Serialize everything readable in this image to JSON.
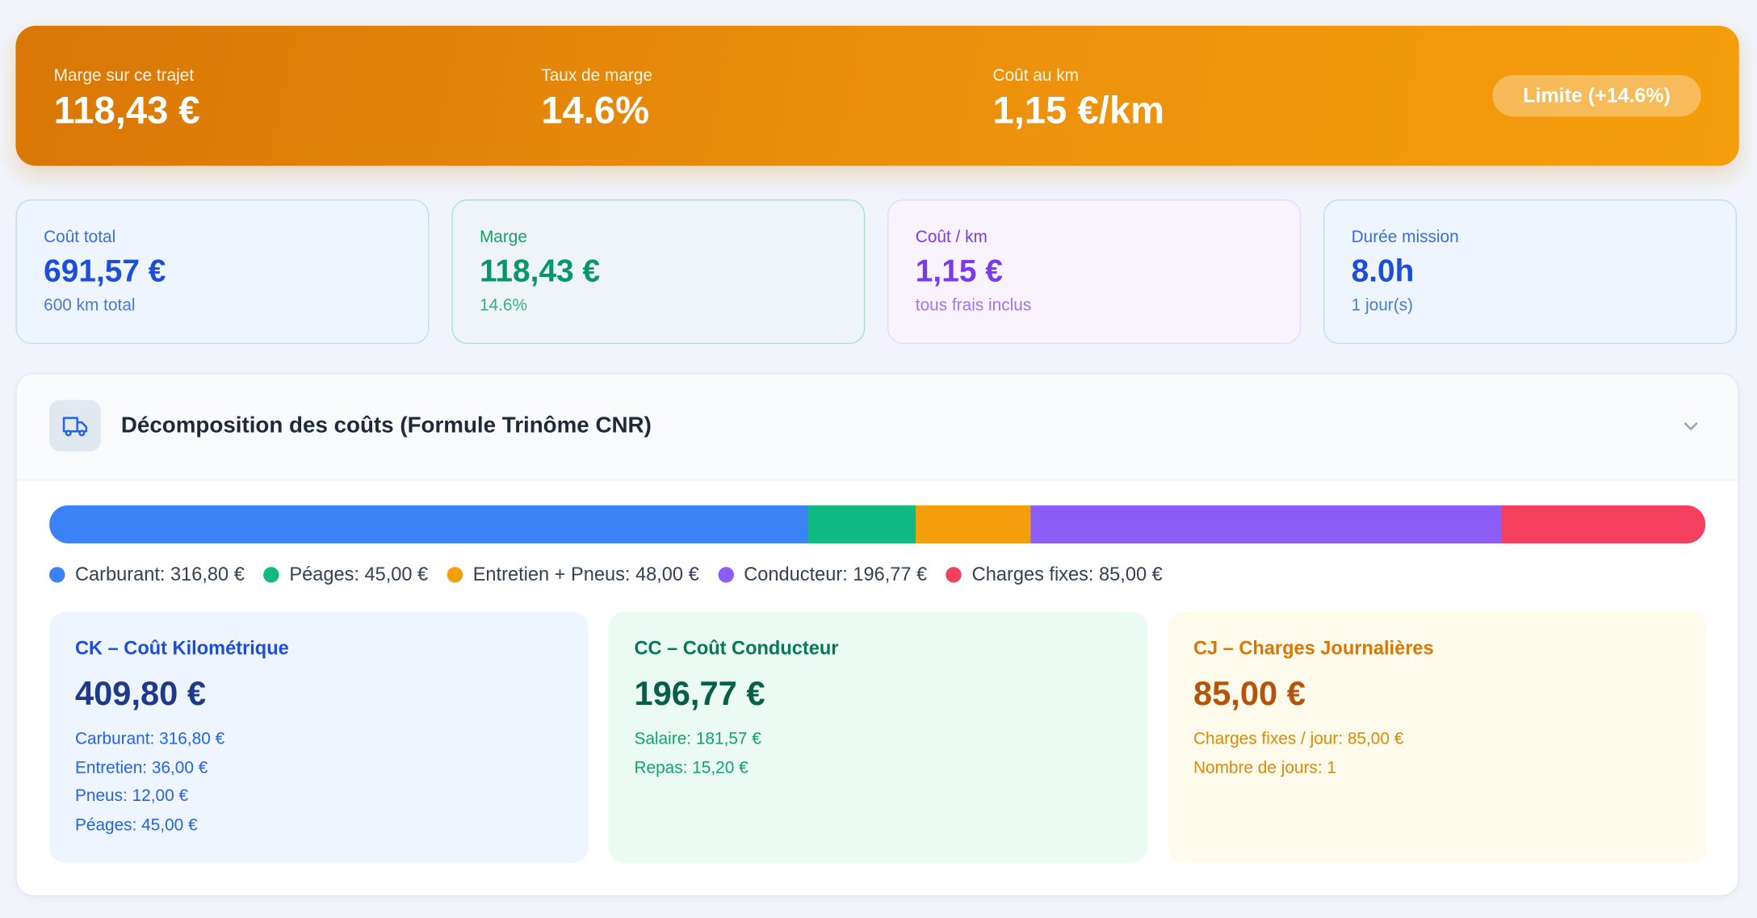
{
  "banner": {
    "items": [
      {
        "label": "Marge sur ce trajet",
        "value": "118,43 €"
      },
      {
        "label": "Taux de marge",
        "value": "14.6%"
      },
      {
        "label": "Coût au km",
        "value": "1,15 €/km"
      }
    ],
    "badge": "Limite (+14.6%)"
  },
  "stats": [
    {
      "label": "Coût total",
      "value": "691,57 €",
      "sub": "600 km total"
    },
    {
      "label": "Marge",
      "value": "118,43 €",
      "sub": "14.6%"
    },
    {
      "label": "Coût / km",
      "value": "1,15 €",
      "sub": "tous frais inclus"
    },
    {
      "label": "Durée mission",
      "value": "8.0h",
      "sub": "1 jour(s)"
    }
  ],
  "breakdown": {
    "title": "Décomposition des coûts (Formule Trinôme CNR)",
    "segments": [
      {
        "label": "Carburant: 316,80 €",
        "value": 316.8,
        "color": "#3b82f6"
      },
      {
        "label": "Péages: 45,00 €",
        "value": 45,
        "color": "#10b981"
      },
      {
        "label": "Entretien + Pneus: 48,00 €",
        "value": 48,
        "color": "#f59e0b"
      },
      {
        "label": "Conducteur: 196,77 €",
        "value": 196.77,
        "color": "#8b5cf6"
      },
      {
        "label": "Charges fixes: 85,00 €",
        "value": 85,
        "color": "#f43f5e"
      }
    ],
    "cards": [
      {
        "title": "CK – Coût Kilométrique",
        "total": "409,80 €",
        "lines": [
          "Carburant: 316,80 €",
          "Entretien: 36,00 €",
          "Pneus: 12,00 €",
          "Péages: 45,00 €"
        ]
      },
      {
        "title": "CC – Coût Conducteur",
        "total": "196,77 €",
        "lines": [
          "Salaire: 181,57 €",
          "Repas: 15,20 €"
        ]
      },
      {
        "title": "CJ – Charges Journalières",
        "total": "85,00 €",
        "lines": [
          "Charges fixes / jour: 85,00 €",
          "Nombre de jours: 1"
        ]
      }
    ]
  }
}
